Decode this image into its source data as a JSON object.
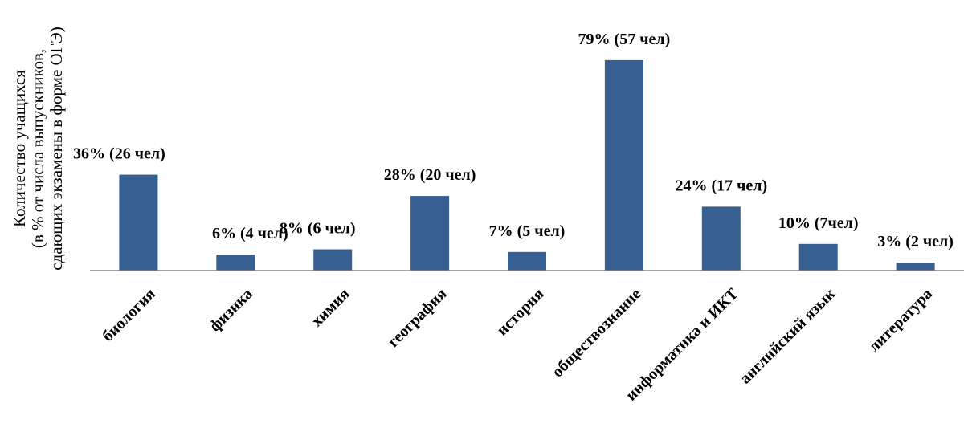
{
  "chart_data": {
    "type": "bar",
    "title": "",
    "xlabel": "",
    "ylabel_lines": [
      "Количество учащихся",
      "(в % от числа выпускников,",
      "сдающих экзамены в форме ОГЭ)"
    ],
    "ylim": [
      0,
      85
    ],
    "grid": false,
    "legend": "none",
    "colors": {
      "bar": "#375f91",
      "axis": "#868686"
    },
    "categories": [
      "биология",
      "физика",
      "химия",
      "география",
      "история",
      "обществознание",
      "информатика и ИКТ",
      "английский язык",
      "литература"
    ],
    "values": [
      36,
      6,
      8,
      28,
      7,
      79,
      24,
      10,
      3
    ],
    "data_labels": [
      "36% (26 чел)",
      "6% (4 чел)",
      "8% (6 чел)",
      "28% (20 чел)",
      "7% (5 чел)",
      "79% (57 чел)",
      "24% (17 чел)",
      "10% (7чел)",
      "3% (2 чел)"
    ]
  }
}
